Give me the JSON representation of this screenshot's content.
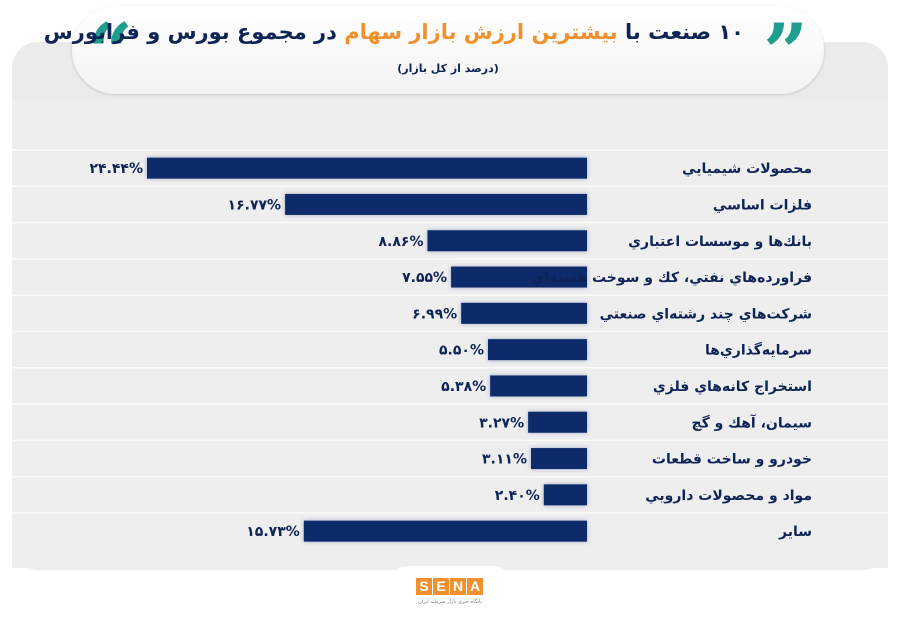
{
  "header": {
    "title_part1": "۱۰ صنعت با ",
    "title_highlight": "بیشترین ارزش بازار سهام",
    "title_part2": " در مجموع بورس و فرابورس",
    "subtitle": "(درصد از کل بازار)",
    "quote_open": "“",
    "quote_close": "”",
    "accent_color": "#f0912d",
    "quote_color": "#1f9e8e"
  },
  "logo": {
    "letters": [
      "S",
      "E",
      "N",
      "A"
    ],
    "tagline": "پایگاه خبری بازار سرمایه ایران"
  },
  "chart_data": {
    "type": "bar",
    "orientation": "horizontal",
    "bar_color": "#0d2a6b",
    "categories": [
      "محصولات شيميايي",
      "فلزات اساسي",
      "بانك‌ها و موسسات اعتباري",
      "فراورده‌هاي نفتي، كك و سوخت هسته‌اي",
      "شركت‌هاي چند رشته‌اي صنعتي",
      "سرمايه‌گذاري‌ها",
      "استخراج كانه‌هاي فلزي",
      "سيمان، آهك و گچ",
      "خودرو و ساخت قطعات",
      "مواد و محصولات دارويي",
      "ساير"
    ],
    "values": [
      24.44,
      16.77,
      8.86,
      7.55,
      6.99,
      5.5,
      5.38,
      3.27,
      3.11,
      2.4,
      15.73
    ],
    "value_labels": [
      "۲۴.۴۴%",
      "۱۶.۷۷%",
      "۸.۸۶%",
      "۷.۵۵%",
      "۶.۹۹%",
      "۵.۵۰%",
      "۵.۳۸%",
      "۳.۲۷%",
      "۳.۱۱%",
      "۲.۴۰%",
      "۱۵.۷۳%"
    ],
    "unit": "%",
    "grid": false,
    "legend": "none"
  }
}
